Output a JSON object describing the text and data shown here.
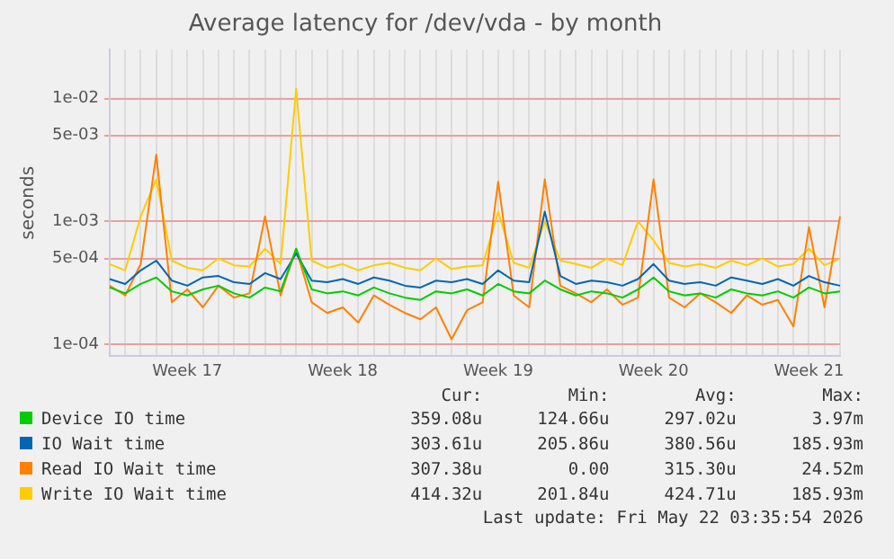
{
  "chart_data": {
    "type": "line",
    "title": "Average latency for /dev/vda - by month",
    "ylabel": "seconds",
    "log": "y",
    "grid": true,
    "legend": "bottom",
    "marker": "none",
    "line_style": "solid",
    "categories": [
      null,
      null,
      null,
      null,
      null,
      "Week 17",
      null,
      null,
      null,
      null,
      null,
      null,
      null,
      null,
      null,
      "Week 18",
      null,
      null,
      null,
      null,
      null,
      null,
      null,
      null,
      null,
      "Week 19",
      null,
      null,
      null,
      null,
      null,
      null,
      null,
      null,
      null,
      "Week 20",
      null,
      null,
      null,
      null,
      null,
      null,
      null,
      null,
      null,
      "Week 21",
      null,
      null
    ],
    "ylim": [
      8e-05,
      0.025
    ],
    "yticks": [
      {
        "value": 0.0001,
        "label": "1e-04"
      },
      {
        "value": 0.0005,
        "label": "5e-04"
      },
      {
        "value": 0.001,
        "label": "1e-03"
      },
      {
        "value": 0.005,
        "label": "5e-03"
      },
      {
        "value": 0.01,
        "label": "1e-02"
      }
    ],
    "series": [
      {
        "name": "Device IO time",
        "color": "#00cc00",
        "values": [
          0.00029,
          0.00026,
          0.00031,
          0.00035,
          0.00027,
          0.00025,
          0.00028,
          0.0003,
          0.00026,
          0.00024,
          0.00029,
          0.00027,
          0.0006,
          0.00028,
          0.00026,
          0.00027,
          0.00025,
          0.00029,
          0.00026,
          0.00024,
          0.00023,
          0.00027,
          0.00026,
          0.00028,
          0.00025,
          0.00031,
          0.00027,
          0.00026,
          0.00033,
          0.00028,
          0.00025,
          0.00027,
          0.00026,
          0.00024,
          0.00028,
          0.00035,
          0.00027,
          0.00025,
          0.00026,
          0.00024,
          0.00028,
          0.00026,
          0.00025,
          0.00027,
          0.00024,
          0.00029,
          0.00026,
          0.00027
        ]
      },
      {
        "name": "IO Wait time",
        "color": "#0066b3",
        "values": [
          0.00034,
          0.00031,
          0.0004,
          0.00048,
          0.00033,
          0.0003,
          0.00035,
          0.00036,
          0.00032,
          0.00031,
          0.00038,
          0.00034,
          0.00055,
          0.00033,
          0.00032,
          0.00034,
          0.00031,
          0.00035,
          0.00033,
          0.0003,
          0.00029,
          0.00033,
          0.00032,
          0.00034,
          0.00031,
          0.0004,
          0.00033,
          0.00032,
          0.0012,
          0.00036,
          0.00031,
          0.00033,
          0.00032,
          0.0003,
          0.00034,
          0.00045,
          0.00033,
          0.00031,
          0.00032,
          0.0003,
          0.00035,
          0.00033,
          0.00031,
          0.00034,
          0.0003,
          0.00036,
          0.00032,
          0.0003
        ]
      },
      {
        "name": "Read IO Wait time",
        "color": "#ff8000",
        "values": [
          0.0003,
          0.00025,
          0.00045,
          0.0035,
          0.00022,
          0.00028,
          0.0002,
          0.0003,
          0.00024,
          0.00026,
          0.0011,
          0.00025,
          0.0006,
          0.00022,
          0.00018,
          0.0002,
          0.00015,
          0.00025,
          0.00021,
          0.00018,
          0.00016,
          0.0002,
          0.00011,
          0.00019,
          0.00022,
          0.0021,
          0.00025,
          0.0002,
          0.0022,
          0.0003,
          0.00026,
          0.00022,
          0.00028,
          0.00021,
          0.00024,
          0.0022,
          0.00024,
          0.0002,
          0.00026,
          0.00022,
          0.00018,
          0.00025,
          0.00021,
          0.00023,
          0.00014,
          0.0009,
          0.0002,
          0.0011
        ]
      },
      {
        "name": "Write IO Wait time",
        "color": "#ffcc00",
        "values": [
          0.00045,
          0.0004,
          0.0011,
          0.0022,
          0.00048,
          0.00042,
          0.0004,
          0.0005,
          0.00044,
          0.00043,
          0.0006,
          0.00045,
          0.012,
          0.00048,
          0.00042,
          0.00045,
          0.0004,
          0.00044,
          0.00046,
          0.00042,
          0.0004,
          0.0005,
          0.00041,
          0.00043,
          0.00044,
          0.0012,
          0.00046,
          0.00042,
          0.001,
          0.00048,
          0.00045,
          0.00042,
          0.0005,
          0.00044,
          0.001,
          0.0007,
          0.00046,
          0.00043,
          0.00045,
          0.00042,
          0.00048,
          0.00044,
          0.0005,
          0.00043,
          0.00045,
          0.0006,
          0.00044,
          0.0005
        ]
      }
    ],
    "annotations": [
      "Cur:",
      "Min:",
      "Avg:",
      "Max:",
      "359.08u",
      "124.66u",
      "297.02u",
      "3.97m",
      "303.61u",
      "205.86u",
      "380.56u",
      "185.93m",
      "307.38u",
      "0.00",
      "315.30u",
      "24.52m",
      "414.32u",
      "201.84u",
      "424.71u",
      "185.93m",
      "Last update: Fri May 22 03:35:54 2026"
    ]
  }
}
